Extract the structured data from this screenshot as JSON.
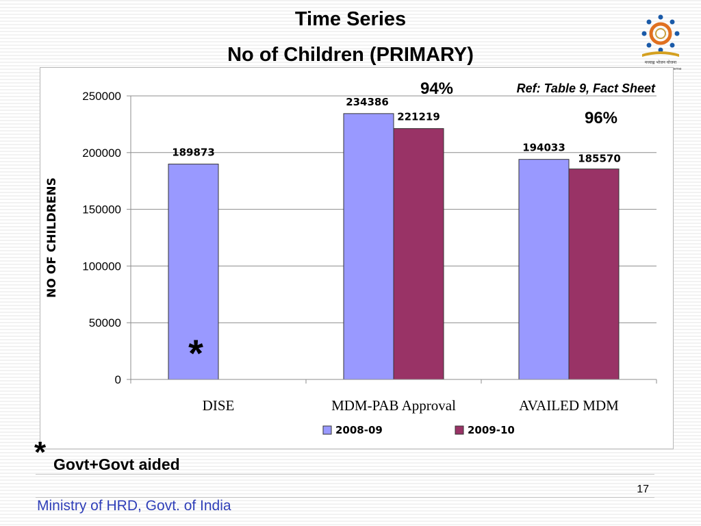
{
  "slide": {
    "title_line1": "Time Series",
    "title_line2": "No of Children (PRIMARY)",
    "reference": "Ref: Table 9, Fact Sheet",
    "footnote_marker": "*",
    "footnote_text": "Govt+Govt aided",
    "page_number": "17",
    "footer": "Ministry of HRD, Govt. of India",
    "logo_caption": "मध्याह्न भोजन योजना",
    "logo_subcaption": "Mid Day Meal Scheme"
  },
  "chart_data": {
    "type": "bar",
    "title": "",
    "xlabel": "",
    "ylabel": "NO OF CHILDRENS",
    "ylim": [
      0,
      250000
    ],
    "yticks": [
      0,
      50000,
      100000,
      150000,
      200000,
      250000
    ],
    "categories": [
      "DISE",
      "MDM-PAB Approval",
      "AVAILED MDM"
    ],
    "series": [
      {
        "name": "2008-09",
        "color": "#9999ff",
        "values": [
          189873,
          234386,
          194033
        ]
      },
      {
        "name": "2009-10",
        "color": "#993366",
        "values": [
          null,
          221219,
          185570
        ]
      }
    ],
    "data_labels": [
      [
        "189873",
        "234386",
        "194033"
      ],
      [
        "",
        "221219",
        "185570"
      ]
    ],
    "annotations": {
      "dise_2009_10_marker": "*",
      "mdm_pab_percent": "94%",
      "availed_percent": "96%"
    },
    "legend_position": "bottom",
    "grid": true
  }
}
